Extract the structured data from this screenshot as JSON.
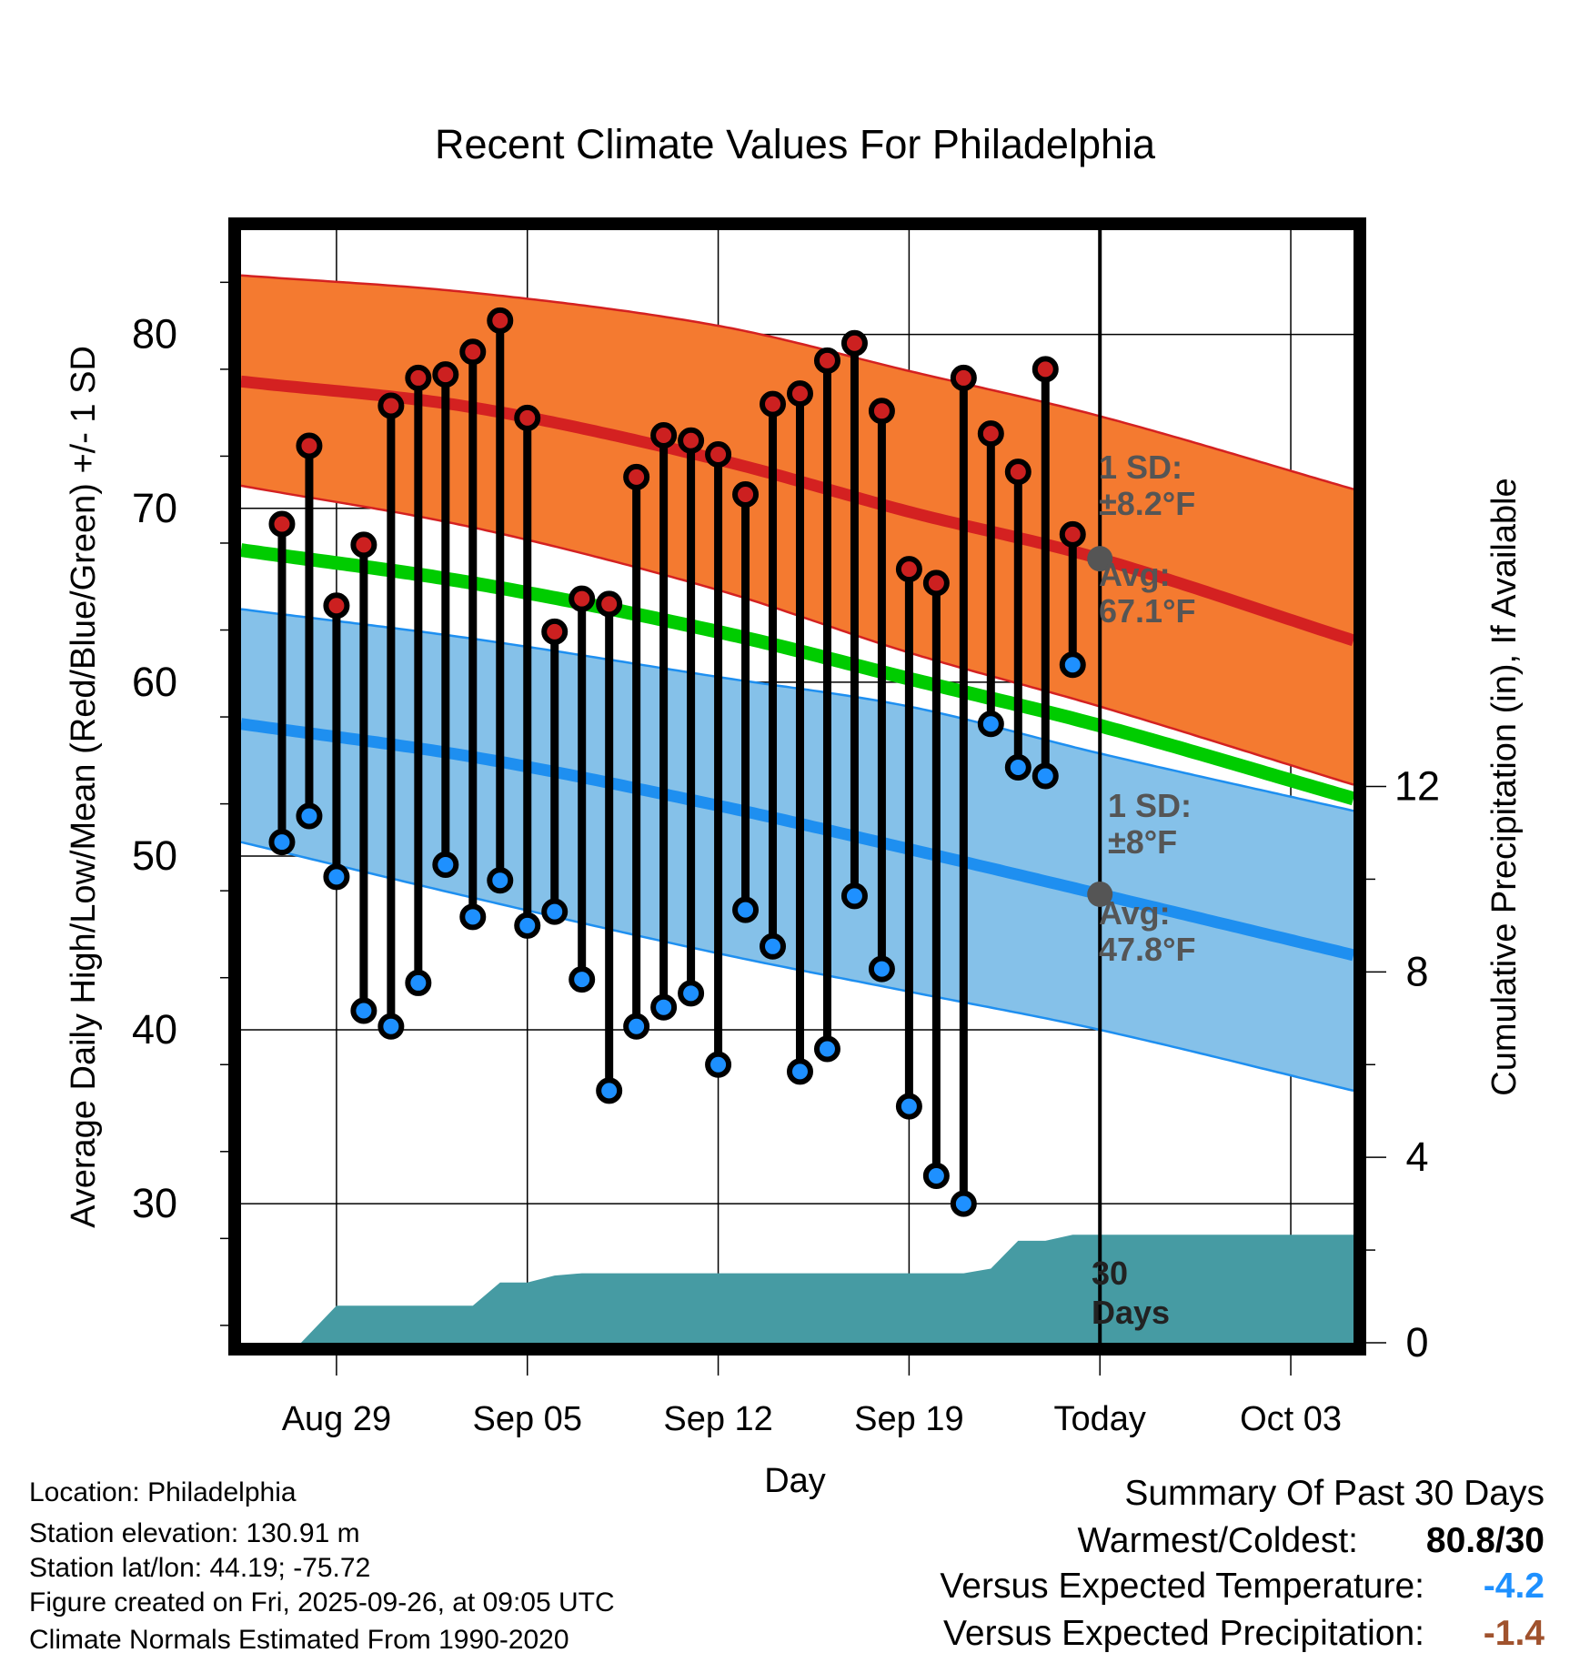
{
  "chart_data": {
    "type": "line",
    "title": "Recent Climate Values For Philadelphia",
    "xlabel": "Day",
    "ylabel": "Average Daily High/Low/Mean (Red/Blue/Green) +/- 1 SD",
    "y2label": "Cumulative Precipitation (in), If Available",
    "ylim": [
      22,
      86
    ],
    "y2lim": [
      0,
      24
    ],
    "yticks": [
      30,
      40,
      50,
      60,
      70,
      80
    ],
    "y2ticks": [
      0,
      4,
      8,
      12
    ],
    "xticks": [
      {
        "day": 4,
        "label": "Aug 29"
      },
      {
        "day": 11,
        "label": "Sep 05"
      },
      {
        "day": 18,
        "label": "Sep 12"
      },
      {
        "day": 25,
        "label": "Sep 19"
      },
      {
        "day": 32,
        "label": "Today"
      },
      {
        "day": 39,
        "label": "Oct 03"
      }
    ],
    "xlim": [
      0.5,
      41.3
    ],
    "today_day": 32,
    "daily": [
      {
        "day": 2,
        "high": 69.1,
        "low": 50.8
      },
      {
        "day": 3,
        "high": 73.6,
        "low": 52.3
      },
      {
        "day": 4,
        "high": 64.4,
        "low": 48.8
      },
      {
        "day": 5,
        "high": 67.9,
        "low": 41.1
      },
      {
        "day": 6,
        "high": 75.9,
        "low": 40.2
      },
      {
        "day": 7,
        "high": 77.5,
        "low": 42.7
      },
      {
        "day": 8,
        "high": 77.7,
        "low": 49.5
      },
      {
        "day": 9,
        "high": 79.0,
        "low": 46.5
      },
      {
        "day": 10,
        "high": 80.8,
        "low": 48.6
      },
      {
        "day": 11,
        "high": 75.2,
        "low": 46.0
      },
      {
        "day": 12,
        "high": 62.9,
        "low": 46.8
      },
      {
        "day": 13,
        "high": 64.8,
        "low": 42.9
      },
      {
        "day": 14,
        "high": 64.5,
        "low": 36.5
      },
      {
        "day": 15,
        "high": 71.8,
        "low": 40.2
      },
      {
        "day": 16,
        "high": 74.2,
        "low": 41.3
      },
      {
        "day": 17,
        "high": 73.9,
        "low": 42.1
      },
      {
        "day": 18,
        "high": 73.1,
        "low": 38.0
      },
      {
        "day": 19,
        "high": 70.8,
        "low": 46.9
      },
      {
        "day": 20,
        "high": 76.0,
        "low": 44.8
      },
      {
        "day": 21,
        "high": 76.6,
        "low": 37.6
      },
      {
        "day": 22,
        "high": 78.5,
        "low": 38.9
      },
      {
        "day": 23,
        "high": 79.5,
        "low": 47.7
      },
      {
        "day": 24,
        "high": 75.6,
        "low": 43.5
      },
      {
        "day": 25,
        "high": 66.5,
        "low": 35.6
      },
      {
        "day": 26,
        "high": 65.7,
        "low": 31.6
      },
      {
        "day": 27,
        "high": 77.5,
        "low": 30.0
      },
      {
        "day": 28,
        "high": 74.3,
        "low": 57.6
      },
      {
        "day": 29,
        "high": 72.1,
        "low": 55.1
      },
      {
        "day": 30,
        "high": 78.0,
        "low": 54.6
      },
      {
        "day": 31,
        "high": 68.5,
        "low": 61.0
      }
    ],
    "normals": {
      "days": [
        0.5,
        9,
        18,
        25,
        32,
        41.3
      ],
      "high_mean": [
        77.3,
        75.8,
        72.8,
        69.8,
        67.1,
        62.4
      ],
      "high_upper": [
        83.4,
        82.4,
        80.5,
        77.9,
        75.3,
        71.1
      ],
      "high_lower": [
        71.3,
        68.9,
        65.3,
        61.7,
        58.6,
        54.1
      ],
      "mean": [
        67.6,
        65.7,
        62.9,
        60.2,
        57.5,
        53.3
      ],
      "low_mean": [
        57.6,
        55.7,
        52.9,
        50.4,
        47.8,
        44.3
      ],
      "low_upper": [
        64.2,
        62.5,
        60.3,
        58.6,
        55.9,
        52.6
      ],
      "low_lower": [
        50.8,
        47.6,
        44.4,
        42.2,
        40.0,
        36.5
      ]
    },
    "precip_cumulative": [
      {
        "day": 1.7,
        "value": 0
      },
      {
        "day": 2.7,
        "value": 0
      },
      {
        "day": 4,
        "value": 0.8
      },
      {
        "day": 9,
        "value": 0.8
      },
      {
        "day": 10,
        "value": 1.3
      },
      {
        "day": 11,
        "value": 1.3
      },
      {
        "day": 12,
        "value": 1.45
      },
      {
        "day": 13,
        "value": 1.5
      },
      {
        "day": 27,
        "value": 1.5
      },
      {
        "day": 28,
        "value": 1.6
      },
      {
        "day": 29,
        "value": 2.2
      },
      {
        "day": 30,
        "value": 2.2
      },
      {
        "day": 31,
        "value": 2.33
      },
      {
        "day": 41.3,
        "value": 2.33
      }
    ],
    "annotations": {
      "high_sd_label": "1 SD:",
      "high_sd_value": "±8.2°F",
      "high_avg_label": "Avg:",
      "high_avg_value": "67.1°F",
      "low_sd_label": "1 SD:",
      "low_sd_value": "±8°F",
      "low_avg_label": "Avg:",
      "low_avg_value": "47.8°F",
      "precip_days_number": "30",
      "precip_days_word": "Days"
    }
  },
  "footer": {
    "location": "Location: Philadelphia",
    "elevation": "Station elevation: 130.91 m",
    "latlon": "Station lat/lon: 44.19; -75.72",
    "created": "Figure created on Fri, 2025-09-26, at 09:05 UTC",
    "normals": "Climate Normals Estimated From 1990-2020"
  },
  "summary": {
    "heading": "Summary Of Past 30 Days",
    "warmest_label": "Warmest/Coldest:",
    "warmest_value": "80.8/30",
    "temp_label": "Versus Expected Temperature:",
    "temp_value": "-4.2",
    "temp_color": "#1e90ff",
    "precip_label": "Versus Expected Precipitation:",
    "precip_value": "-1.4",
    "precip_color": "#a0522d"
  },
  "colors": {
    "high_band": "#f47a30",
    "high_line": "#d42121",
    "low_band": "#85c1e9",
    "low_line": "#1e8ff0",
    "mean_line": "#00cc00",
    "precip_fill": "#469ba3",
    "high_dot": "#cc2020",
    "low_dot": "#1e90ff"
  }
}
